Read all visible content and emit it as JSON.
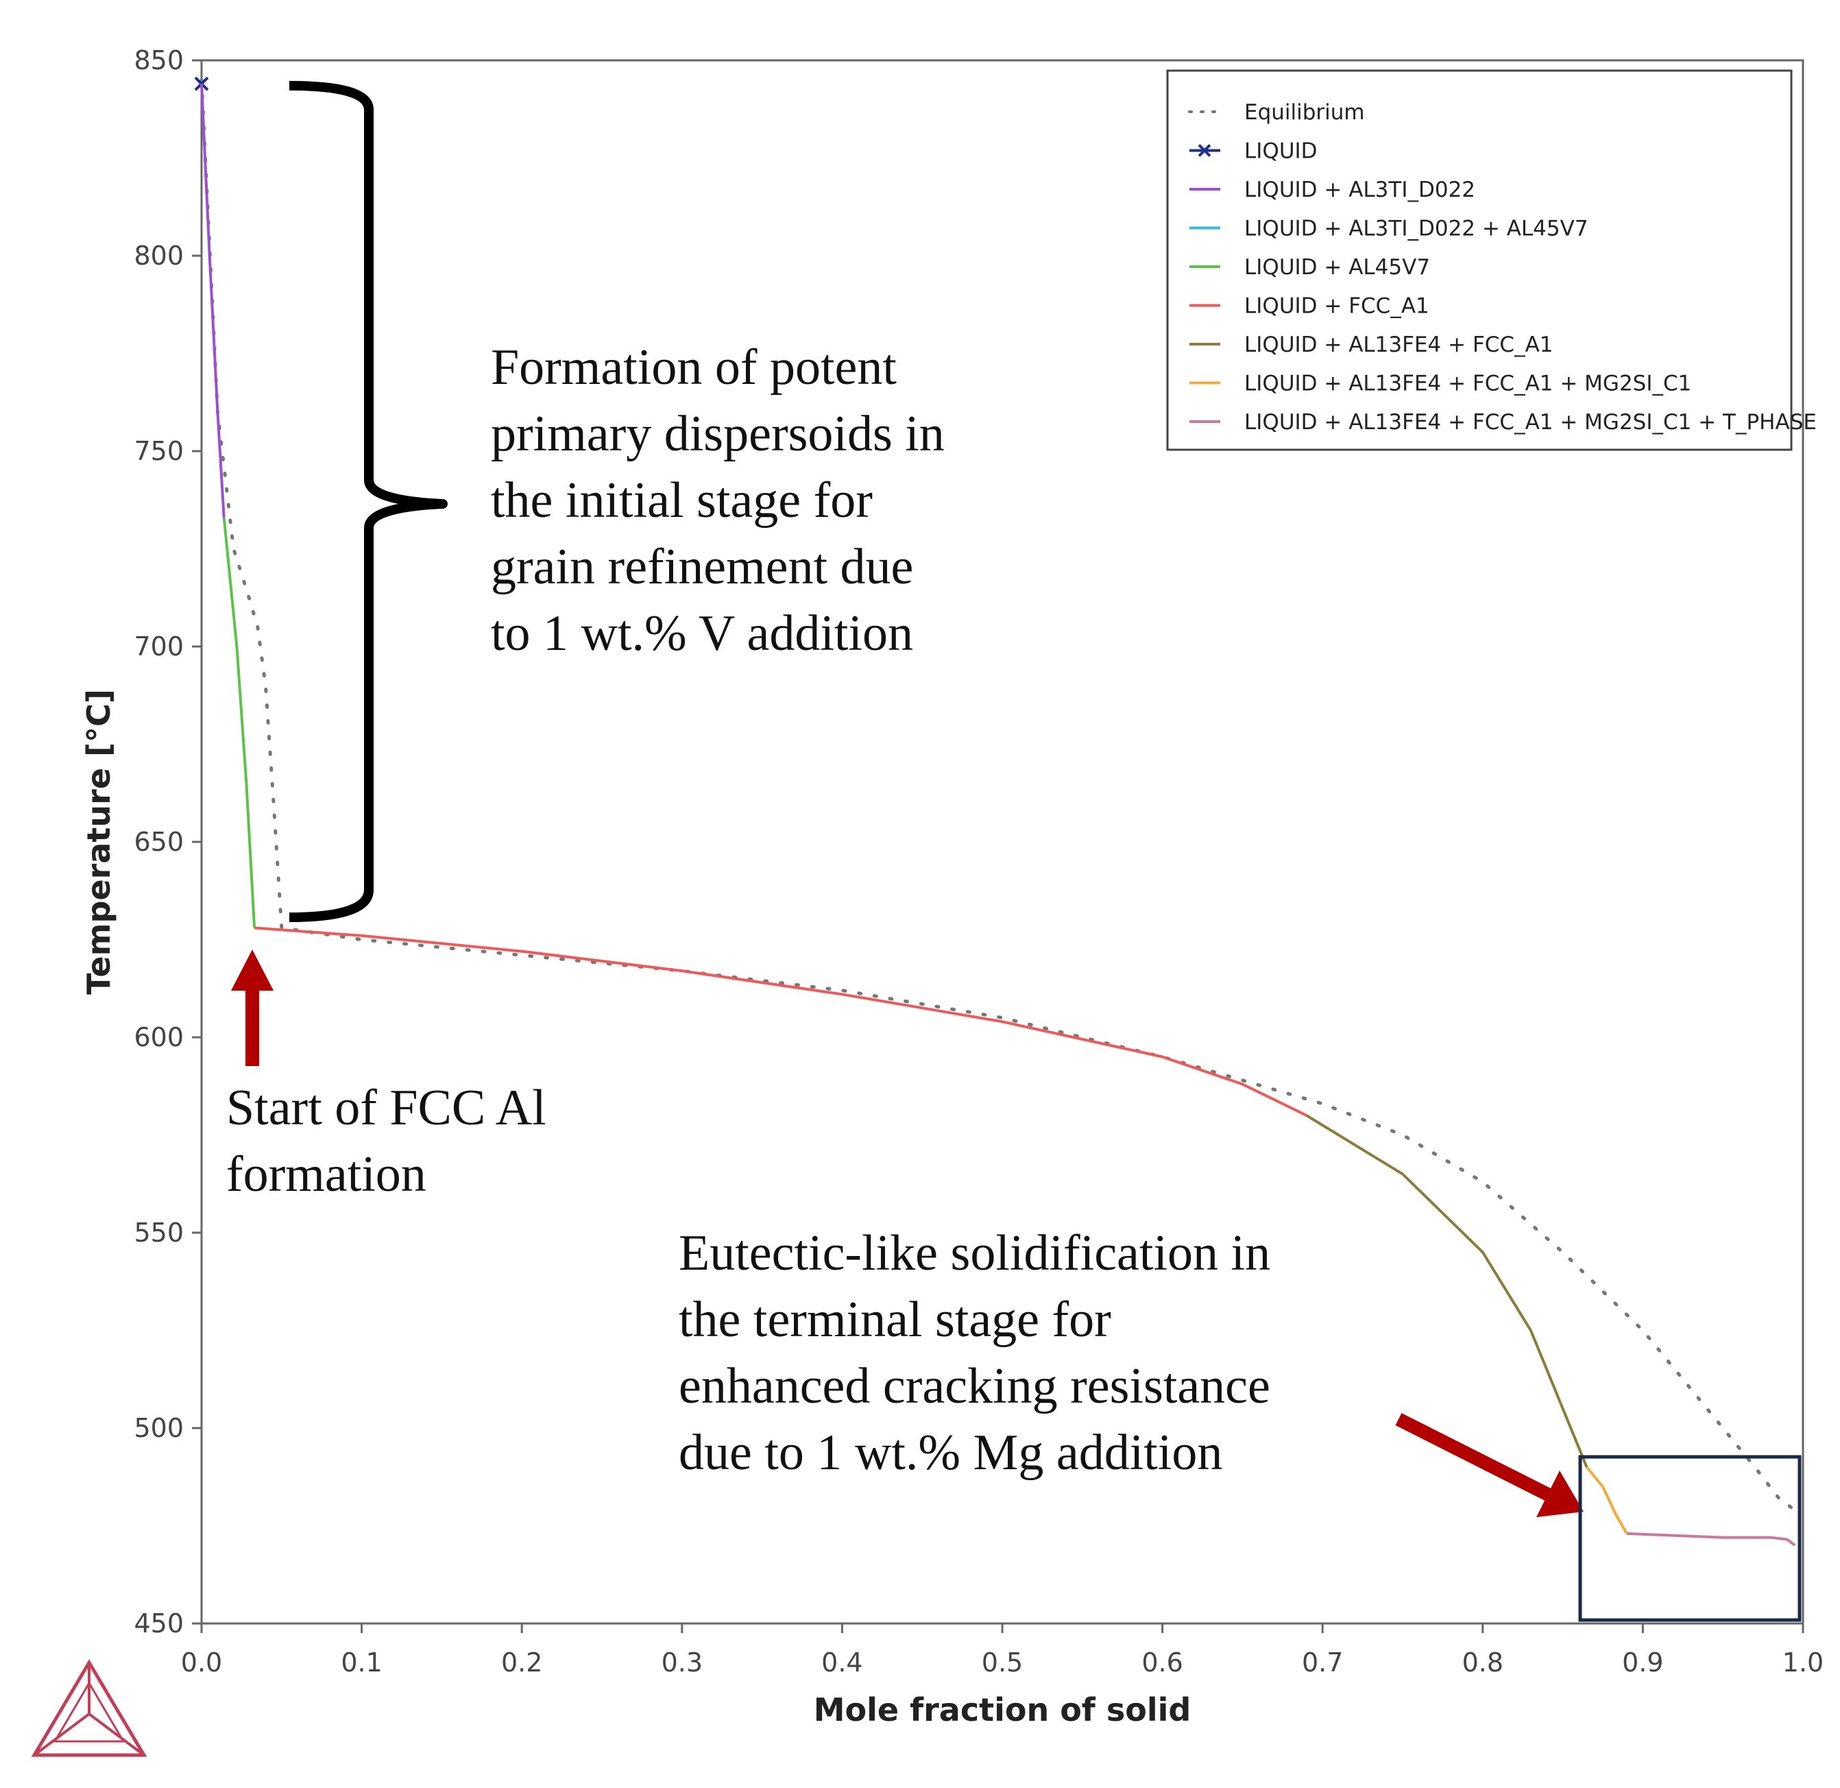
{
  "chart_data": {
    "type": "line",
    "xlabel": "Mole fraction of solid",
    "ylabel": "Temperature [°C]",
    "xlim": [
      0.0,
      1.0
    ],
    "ylim": [
      450,
      850
    ],
    "xticks": [
      "0.0",
      "0.1",
      "0.2",
      "0.3",
      "0.4",
      "0.5",
      "0.6",
      "0.7",
      "0.8",
      "0.9",
      "1.0"
    ],
    "yticks": [
      "450",
      "500",
      "550",
      "600",
      "650",
      "700",
      "750",
      "800",
      "850"
    ],
    "grid": false,
    "legend_position": "top-right",
    "series": [
      {
        "name": "Equilibrium",
        "color": "#777777",
        "style": "dotted",
        "x": [
          0.0,
          0.01,
          0.02,
          0.03,
          0.035,
          0.04,
          0.045,
          0.05,
          0.1,
          0.2,
          0.3,
          0.4,
          0.5,
          0.6,
          0.7,
          0.75,
          0.8,
          0.85,
          0.9,
          0.93,
          0.95,
          0.97,
          0.985,
          0.995
        ],
        "y": [
          845,
          760,
          725,
          712,
          705,
          690,
          660,
          628,
          625,
          621,
          617,
          612,
          605,
          595,
          583,
          575,
          563,
          545,
          525,
          510,
          500,
          490,
          482,
          479
        ]
      },
      {
        "name": "LIQUID",
        "color": "#1f2f8f",
        "style": "marker",
        "x": [
          0.0
        ],
        "y": [
          844
        ]
      },
      {
        "name": "LIQUID + AL3TI_D022",
        "color": "#9b4fd1",
        "style": "solid",
        "x": [
          0.0,
          0.005,
          0.01,
          0.014
        ],
        "y": [
          844,
          800,
          760,
          733
        ]
      },
      {
        "name": "LIQUID + AL3TI_D022 + AL45V7",
        "color": "#35b6e6",
        "style": "solid",
        "x": [],
        "y": []
      },
      {
        "name": "LIQUID + AL45V7",
        "color": "#5cc24a",
        "style": "solid",
        "x": [
          0.014,
          0.022,
          0.028,
          0.033
        ],
        "y": [
          733,
          700,
          665,
          628
        ]
      },
      {
        "name": "LIQUID + FCC_A1",
        "color": "#ee5a5a",
        "style": "solid",
        "x": [
          0.033,
          0.1,
          0.2,
          0.3,
          0.4,
          0.5,
          0.6,
          0.65,
          0.69
        ],
        "y": [
          628,
          626,
          622,
          617,
          611,
          604,
          595,
          588,
          580
        ]
      },
      {
        "name": "LIQUID + AL13FE4 + FCC_A1",
        "color": "#8a7d3c",
        "style": "solid",
        "x": [
          0.69,
          0.75,
          0.8,
          0.83,
          0.85,
          0.86,
          0.865
        ],
        "y": [
          580,
          565,
          545,
          525,
          505,
          495,
          490
        ]
      },
      {
        "name": "LIQUID + AL13FE4 + FCC_A1 + MG2SI_C1",
        "color": "#f4a93b",
        "style": "solid",
        "x": [
          0.865,
          0.875,
          0.883,
          0.89
        ],
        "y": [
          490,
          485,
          478,
          473
        ]
      },
      {
        "name": "LIQUID + AL13FE4 + FCC_A1 + MG2SI_C1 + T_PHASE",
        "color": "#c97a9a",
        "style": "solid",
        "x": [
          0.89,
          0.95,
          0.98,
          0.99,
          0.995
        ],
        "y": [
          473,
          472,
          472,
          471.5,
          470
        ]
      }
    ],
    "annotations": {
      "brace_text": [
        "Formation of potent",
        "primary dispersoids in",
        "the initial stage for",
        "grain refinement due",
        "to 1 wt.% V addition"
      ],
      "fcc_text": [
        "Start of FCC Al",
        "formation"
      ],
      "eutectic_text": [
        "Eutectic-like solidification in",
        "the terminal stage for",
        "enhanced cracking resistance",
        "due to 1 wt.% Mg addition"
      ]
    },
    "colors": {
      "arrow": "#b00000",
      "highlight_box": "#1c2a4a",
      "logo": "#c0405a"
    }
  }
}
